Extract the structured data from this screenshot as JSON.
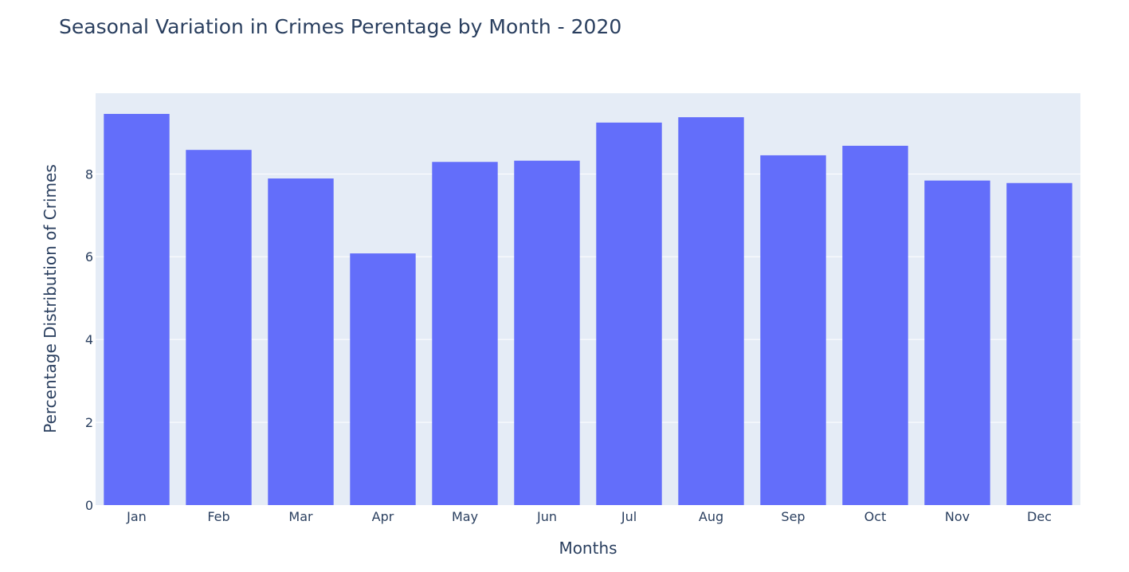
{
  "chart_data": {
    "type": "bar",
    "title": "Seasonal Variation in Crimes Perentage by Month - 2020",
    "xlabel": "Months",
    "ylabel": "Percentage Distribution of Crimes",
    "categories": [
      "Jan",
      "Feb",
      "Mar",
      "Apr",
      "May",
      "Jun",
      "Jul",
      "Aug",
      "Sep",
      "Oct",
      "Nov",
      "Dec"
    ],
    "values": [
      9.45,
      8.58,
      7.89,
      6.08,
      8.29,
      8.32,
      9.24,
      9.37,
      8.45,
      8.68,
      7.84,
      7.78
    ],
    "ylim": [
      0,
      9.95
    ],
    "yticks": [
      0,
      2,
      4,
      6,
      8
    ],
    "grid": true,
    "legend": false,
    "colors": {
      "bar": "#636efa",
      "plot_bg": "#e5ecf6",
      "grid": "#ffffff",
      "text": "#2a3f5f"
    }
  }
}
